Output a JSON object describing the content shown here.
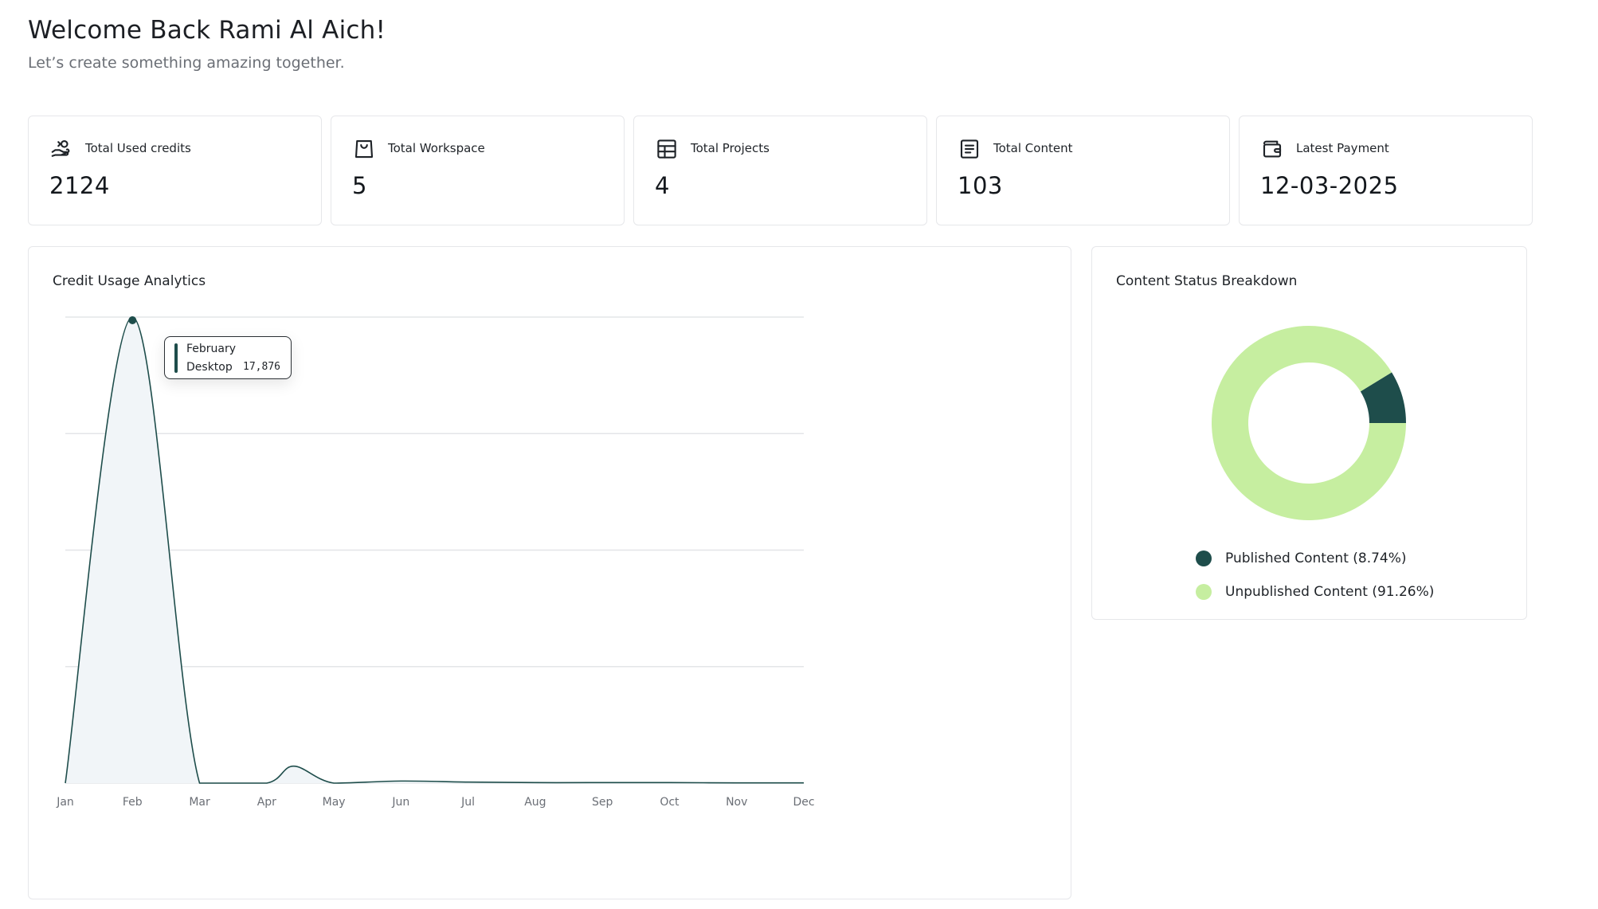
{
  "header": {
    "title": "Welcome Back Rami Al Aich!",
    "subtitle": "Let’s create something amazing together."
  },
  "stats": [
    {
      "label": "Total Used credits",
      "value": "2124",
      "icon": "credits-hand-icon"
    },
    {
      "label": "Total Workspace",
      "value": "5",
      "icon": "shopping-bag-icon"
    },
    {
      "label": "Total Projects",
      "value": "4",
      "icon": "table-grid-icon"
    },
    {
      "label": "Total Content",
      "value": "103",
      "icon": "document-lines-icon"
    },
    {
      "label": "Latest Payment",
      "value": "12-03-2025",
      "icon": "wallet-icon"
    }
  ],
  "credit_panel": {
    "title": "Credit Usage Analytics",
    "tooltip": {
      "month": "February",
      "series": "Desktop",
      "value": "17,876"
    }
  },
  "status_panel": {
    "title": "Content Status Breakdown",
    "legend": [
      {
        "label": "Published Content (8.74%)",
        "color": "#1e4d4b"
      },
      {
        "label": "Unpublished Content (91.26%)",
        "color": "#c6eea0"
      }
    ]
  },
  "chart_data": [
    {
      "type": "area",
      "title": "Credit Usage Analytics",
      "categories": [
        "Jan",
        "Feb",
        "Mar",
        "Apr",
        "May",
        "Jun",
        "Jul",
        "Aug",
        "Sep",
        "Oct",
        "Nov",
        "Dec"
      ],
      "series": [
        {
          "name": "Desktop",
          "values": [
            0,
            17876,
            0,
            0,
            0,
            80,
            40,
            20,
            20,
            20,
            10,
            10
          ]
        }
      ],
      "annotations": [
        {
          "x": "Apr-May",
          "value": 650
        }
      ],
      "ylim": [
        0,
        17876
      ],
      "grid": true,
      "colors": {
        "line": "#1e4d4b",
        "fill": "#f1f5f8",
        "grid": "#e3e5e8"
      }
    },
    {
      "type": "pie",
      "title": "Content Status Breakdown",
      "labels": [
        "Published Content",
        "Unpublished Content"
      ],
      "values": [
        8.74,
        91.26
      ],
      "colors": [
        "#1e4d4b",
        "#c6eea0"
      ],
      "donut": true
    }
  ]
}
